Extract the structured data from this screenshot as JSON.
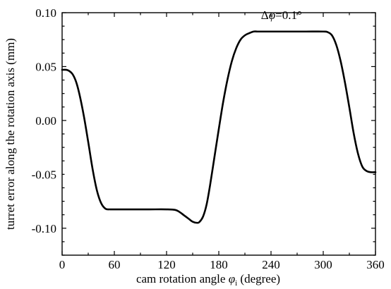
{
  "chart_data": {
    "type": "line",
    "title": "",
    "xlabel": "cam rotation angle φ",
    "xlabel_subscript": "i",
    "xlabel_suffix": " (degree)",
    "ylabel": "turret error along the rotation axis (mm)",
    "xlim": [
      0,
      360
    ],
    "ylim": [
      -0.125,
      0.1
    ],
    "x_ticks": [
      0,
      60,
      120,
      180,
      240,
      300,
      360
    ],
    "x_tick_labels": [
      "0",
      "60",
      "120",
      "180",
      "240",
      "300",
      "360"
    ],
    "y_ticks": [
      0.1,
      0.05,
      0.0,
      -0.05,
      -0.1
    ],
    "y_tick_labels": [
      "0.10",
      "0.05",
      "0.00",
      "-0.05",
      "-0.10"
    ],
    "grid": false,
    "annotation": {
      "delta": "Δ",
      "symbol": "φ",
      "value": "=0.1°",
      "x": 252,
      "y": 0.094
    },
    "series": [
      {
        "color": "#000000",
        "x": [
          0,
          5,
          8,
          12,
          16,
          20,
          25,
          30,
          35,
          40,
          45,
          50,
          55,
          60,
          80,
          100,
          120,
          130,
          135,
          140,
          145,
          150,
          155,
          158,
          162,
          166,
          170,
          175,
          180,
          185,
          190,
          195,
          200,
          205,
          210,
          215,
          220,
          225,
          230,
          240,
          260,
          280,
          300,
          305,
          310,
          315,
          320,
          325,
          330,
          335,
          340,
          345,
          350,
          355,
          360
        ],
        "y": [
          0.047,
          0.047,
          0.046,
          0.043,
          0.036,
          0.024,
          0.004,
          -0.02,
          -0.045,
          -0.065,
          -0.077,
          -0.082,
          -0.0825,
          -0.0825,
          -0.0825,
          -0.0825,
          -0.0825,
          -0.083,
          -0.085,
          -0.088,
          -0.091,
          -0.094,
          -0.095,
          -0.094,
          -0.089,
          -0.078,
          -0.06,
          -0.034,
          -0.008,
          0.017,
          0.038,
          0.055,
          0.067,
          0.075,
          0.079,
          0.081,
          0.0825,
          0.0825,
          0.0825,
          0.0825,
          0.0825,
          0.0825,
          0.0825,
          0.082,
          0.079,
          0.07,
          0.055,
          0.035,
          0.012,
          -0.012,
          -0.031,
          -0.043,
          -0.047,
          -0.048,
          -0.048
        ]
      }
    ]
  }
}
